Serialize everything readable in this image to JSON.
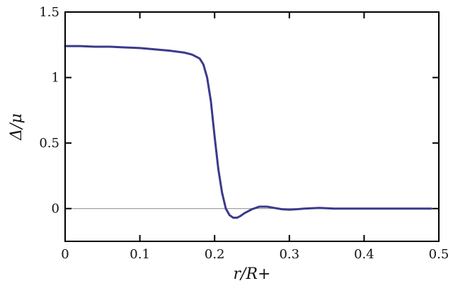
{
  "chart_data": {
    "type": "line",
    "xlabel": "r/R+",
    "ylabel": "Δ/μ",
    "xlim": [
      0,
      0.5
    ],
    "ylim": [
      -0.25,
      1.5
    ],
    "grid": false,
    "x_ticks": [
      0,
      0.1,
      0.2,
      0.3,
      0.4,
      0.5
    ],
    "x_tick_labels": [
      "0",
      "0.1",
      "0.2",
      "0.3",
      "0.4",
      "0.5"
    ],
    "y_ticks": [
      0,
      0.5,
      1,
      1.5
    ],
    "y_tick_labels": [
      "0",
      "0.5",
      "1",
      "1.5"
    ],
    "reference_line": {
      "y": 0,
      "color": "#888888"
    },
    "series": [
      {
        "color": "#3a3a8c",
        "x": [
          0,
          0.02,
          0.04,
          0.06,
          0.08,
          0.1,
          0.12,
          0.14,
          0.16,
          0.17,
          0.18,
          0.185,
          0.19,
          0.195,
          0.2,
          0.205,
          0.21,
          0.215,
          0.22,
          0.225,
          0.23,
          0.235,
          0.24,
          0.25,
          0.26,
          0.27,
          0.28,
          0.29,
          0.3,
          0.31,
          0.32,
          0.34,
          0.36,
          0.38,
          0.4,
          0.45,
          0.49
        ],
        "y": [
          1.24,
          1.24,
          1.235,
          1.235,
          1.23,
          1.225,
          1.215,
          1.205,
          1.19,
          1.175,
          1.145,
          1.1,
          1.0,
          0.82,
          0.55,
          0.3,
          0.12,
          0.0,
          -0.05,
          -0.07,
          -0.07,
          -0.055,
          -0.035,
          -0.005,
          0.015,
          0.015,
          0.005,
          -0.005,
          -0.008,
          -0.005,
          0.0,
          0.005,
          0.0,
          0.0,
          0.0,
          0.0,
          0.0
        ]
      }
    ]
  }
}
